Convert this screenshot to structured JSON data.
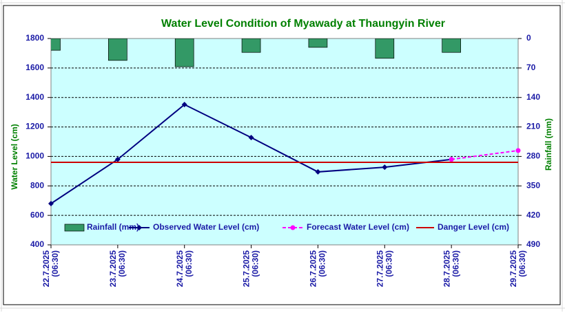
{
  "chart_data": {
    "type": "combo",
    "title": "Water Level Condition of  Myawady at Thaungyin River",
    "y_label": "Water Level (cm)",
    "y2_label": "Rainfall (mm)",
    "categories": [
      [
        "22.7.2025",
        "(06:30)"
      ],
      [
        "23.7.2025",
        "(06:30)"
      ],
      [
        "24.7.2025",
        "(06:30)"
      ],
      [
        "25.7.2025",
        "(06:30)"
      ],
      [
        "26.7.2025",
        "(06:30)"
      ],
      [
        "27.7.2025",
        "(06:30)"
      ],
      [
        "28.7.2025",
        "(06:30)"
      ],
      [
        "29.7.2025",
        "(06:30)"
      ]
    ],
    "ylim": [
      400,
      1800
    ],
    "yticks": [
      400,
      600,
      800,
      1000,
      1200,
      1400,
      1600,
      1800
    ],
    "y2lim": [
      0,
      490
    ],
    "y2ticks": [
      0,
      70,
      140,
      210,
      280,
      350,
      420,
      490
    ],
    "y2_reversed": true,
    "grid": true,
    "legend": "bottom",
    "series": [
      {
        "name": "Rainfall (mm)",
        "kind": "bar",
        "axis": "y2",
        "color": "#339966",
        "values": [
          28,
          52,
          67,
          33,
          21,
          47,
          33,
          null
        ]
      },
      {
        "name": "Observed Water Level (cm)",
        "kind": "line",
        "marker": "diamond",
        "color": "#000080",
        "values": [
          680,
          980,
          1352,
          1128,
          895,
          927,
          980,
          null
        ]
      },
      {
        "name": "Forecast Water Level (cm)",
        "kind": "line",
        "marker": "circle",
        "dashed": true,
        "color": "#ff00ff",
        "values": [
          null,
          null,
          null,
          null,
          null,
          null,
          980,
          1040
        ]
      },
      {
        "name": "Danger Level (cm)",
        "kind": "line",
        "color": "#cc0000",
        "values": [
          960,
          960,
          960,
          960,
          960,
          960,
          960,
          960
        ]
      }
    ]
  }
}
